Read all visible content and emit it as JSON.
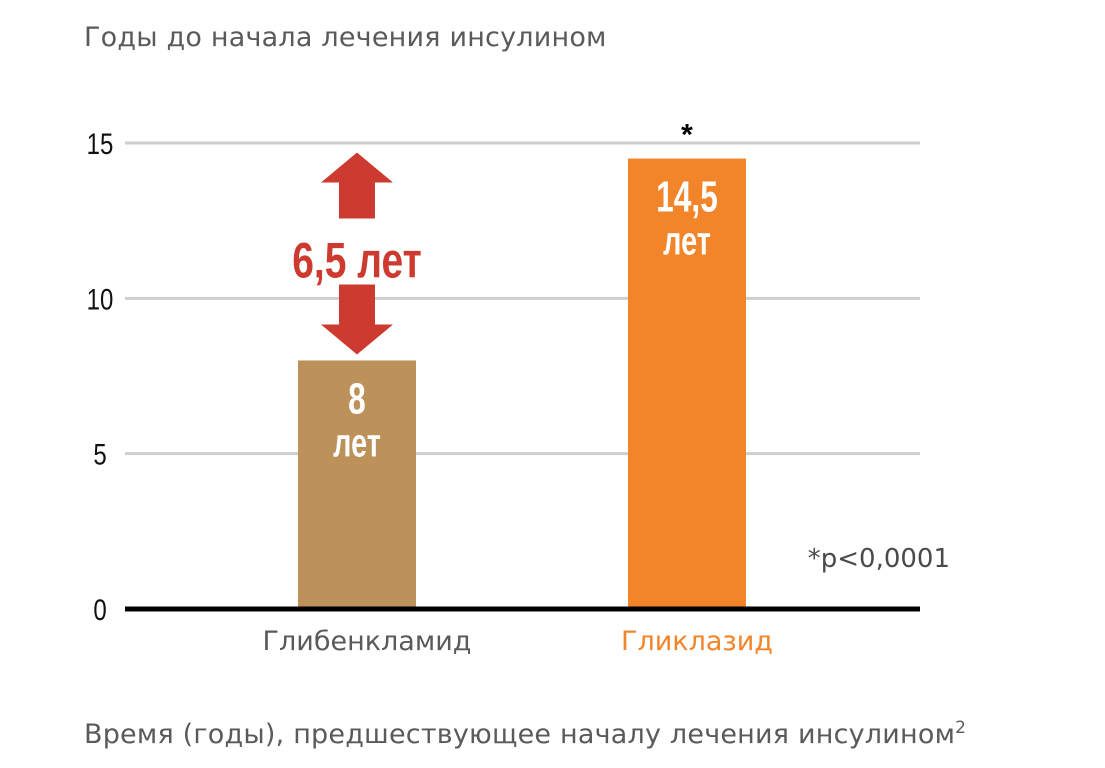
{
  "chart_data": {
    "type": "bar",
    "title": "Годы до начала лечения инсулином",
    "caption": "Время (годы), предшествующее началу лечения инсулином",
    "caption_sup": "2",
    "categories": [
      "Глибенкламид",
      "Гликлазид"
    ],
    "values": [
      8,
      14.5
    ],
    "value_labels": [
      {
        "line1": "8",
        "line2": "лет"
      },
      {
        "line1": "14,5",
        "line2": "лет"
      }
    ],
    "colors": [
      "#bd915a",
      "#f2852a"
    ],
    "category_label_colors": [
      "#5a5a5a",
      "#f2852a"
    ],
    "ylim": [
      0,
      15
    ],
    "yticks": [
      0,
      5,
      10,
      15
    ],
    "grid": true,
    "significance_marker": "*",
    "footnote": "*p<0,0001",
    "difference_label": "6,5 лет",
    "difference_color": "#cd3a2f"
  }
}
